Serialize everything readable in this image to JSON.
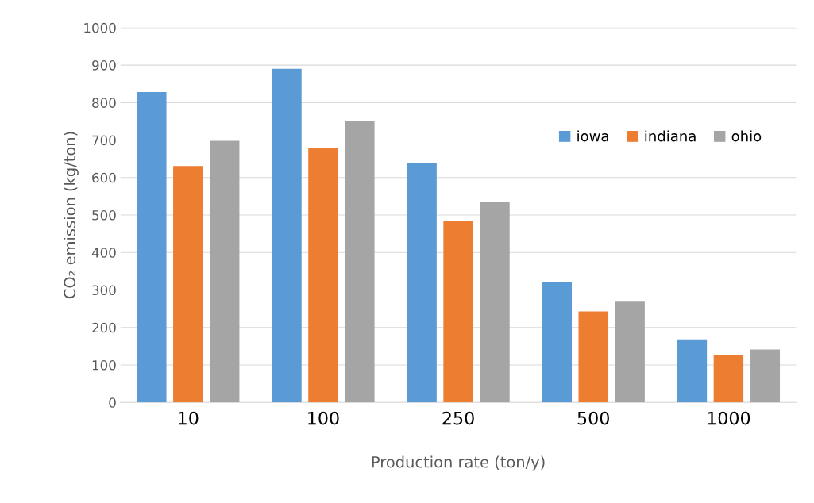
{
  "chart_data": {
    "type": "bar",
    "xlabel": "Production rate (ton/y)",
    "ylabel": "CO₂ emission (kg/ton)",
    "categories": [
      "10",
      "100",
      "250",
      "500",
      "1000"
    ],
    "series": [
      {
        "name": "iowa",
        "color": "#5b9bd5",
        "values": [
          828,
          890,
          640,
          320,
          168
        ]
      },
      {
        "name": "indiana",
        "color": "#ed7d31",
        "values": [
          631,
          678,
          483,
          243,
          127
        ]
      },
      {
        "name": "ohio",
        "color": "#a5a5a5",
        "values": [
          698,
          750,
          536,
          269,
          141
        ]
      }
    ],
    "ylim": [
      0,
      1000
    ],
    "yticks": [
      0,
      100,
      200,
      300,
      400,
      500,
      600,
      700,
      800,
      900,
      1000
    ],
    "grid": "y",
    "legend": "top right"
  }
}
